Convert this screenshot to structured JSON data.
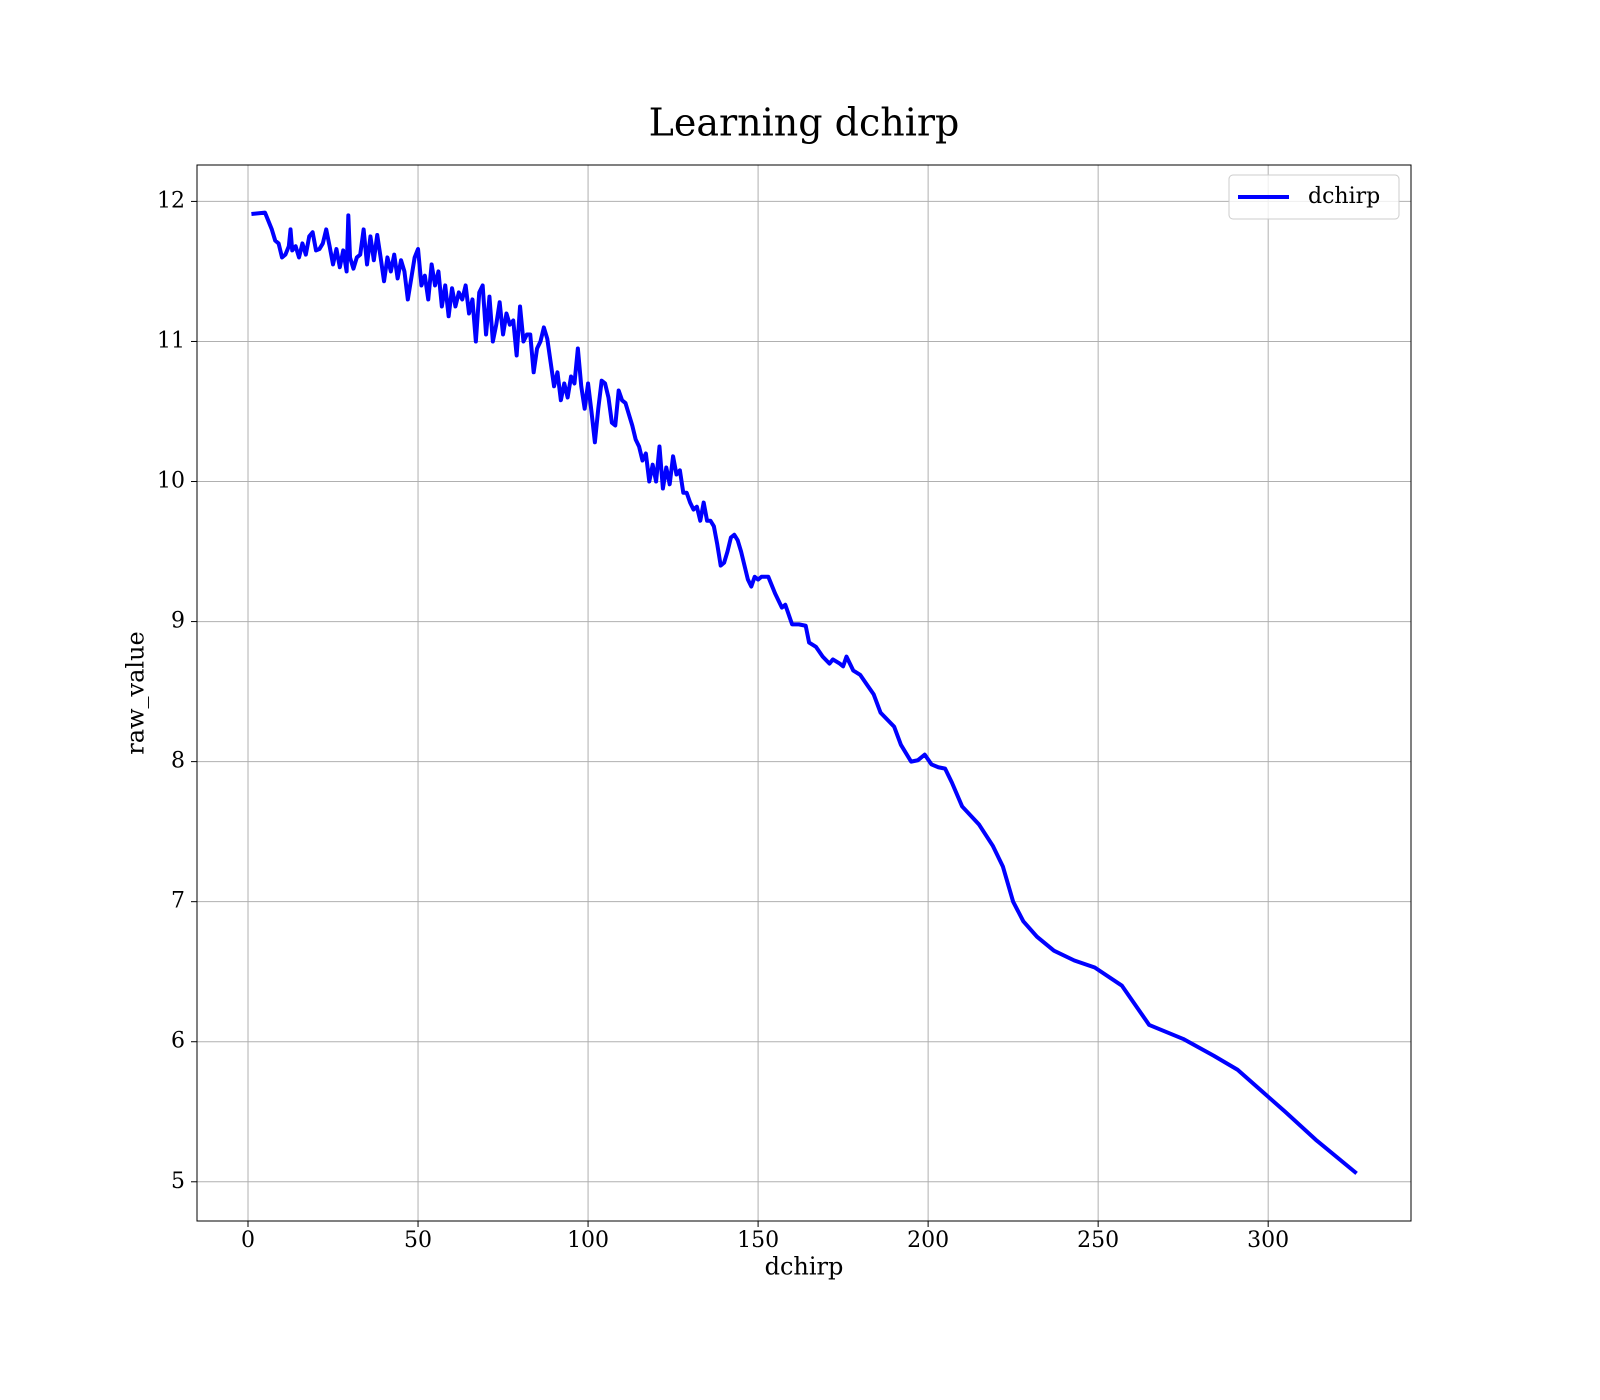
{
  "chart_data": {
    "type": "line",
    "title": "Learning dchirp",
    "xlabel": "dchirp",
    "ylabel": "raw_value",
    "x": [
      1,
      5,
      7,
      8,
      9,
      10,
      11,
      12,
      12.5,
      13,
      14,
      15,
      16,
      17,
      18,
      19,
      20,
      21,
      22,
      23,
      24,
      25,
      26,
      27,
      28,
      29,
      29.5,
      30,
      31,
      32,
      33,
      34,
      35,
      36,
      37,
      38,
      39,
      40,
      41,
      42,
      43,
      44,
      45,
      46,
      47,
      48,
      49,
      50,
      51,
      52,
      53,
      54,
      55,
      56,
      57,
      58,
      59,
      60,
      61,
      62,
      63,
      64,
      65,
      66,
      67,
      68,
      69,
      70,
      71,
      72,
      73,
      74,
      75,
      76,
      77,
      78,
      79,
      80,
      81,
      82,
      83,
      84,
      85,
      86,
      87,
      88,
      89,
      90,
      91,
      92,
      93,
      94,
      95,
      96,
      97,
      98,
      99,
      100,
      101,
      102,
      103,
      104,
      105,
      106,
      107,
      108,
      109,
      110,
      111,
      112,
      113,
      114,
      115,
      116,
      117,
      118,
      119,
      120,
      121,
      122,
      123,
      124,
      125,
      126,
      127,
      128,
      129,
      130,
      131,
      132,
      133,
      134,
      135,
      136,
      137,
      138,
      139,
      140,
      141,
      142,
      143,
      144,
      145,
      146,
      147,
      148,
      149,
      150,
      151,
      153,
      155,
      157,
      158,
      160,
      162,
      164,
      165,
      167,
      169,
      171,
      172,
      174,
      175,
      176,
      178,
      180,
      182,
      184,
      186,
      188,
      190,
      192,
      195,
      197,
      199,
      201,
      203,
      205,
      207,
      210,
      215,
      219,
      222,
      225,
      228,
      232,
      237,
      243,
      249,
      257,
      265,
      275,
      284,
      291,
      298,
      305,
      314,
      326
    ],
    "series": [
      {
        "name": "dchirp",
        "color": "#0000ff",
        "values": [
          11.91,
          11.92,
          11.8,
          11.72,
          11.7,
          11.6,
          11.62,
          11.68,
          11.8,
          11.65,
          11.68,
          11.6,
          11.7,
          11.62,
          11.75,
          11.78,
          11.65,
          11.66,
          11.7,
          11.8,
          11.68,
          11.55,
          11.66,
          11.53,
          11.65,
          11.5,
          11.9,
          11.6,
          11.52,
          11.6,
          11.62,
          11.8,
          11.55,
          11.75,
          11.58,
          11.76,
          11.6,
          11.43,
          11.6,
          11.5,
          11.62,
          11.45,
          11.58,
          11.5,
          11.3,
          11.45,
          11.6,
          11.66,
          11.4,
          11.47,
          11.3,
          11.55,
          11.4,
          11.5,
          11.25,
          11.4,
          11.18,
          11.38,
          11.25,
          11.35,
          11.3,
          11.4,
          11.2,
          11.3,
          11.0,
          11.35,
          11.4,
          11.05,
          11.32,
          11.0,
          11.12,
          11.28,
          11.05,
          11.2,
          11.12,
          11.15,
          10.9,
          11.25,
          11.0,
          11.05,
          11.05,
          10.78,
          10.95,
          11.0,
          11.1,
          11.02,
          10.85,
          10.68,
          10.78,
          10.58,
          10.7,
          10.6,
          10.75,
          10.7,
          10.95,
          10.68,
          10.52,
          10.7,
          10.5,
          10.28,
          10.52,
          10.72,
          10.7,
          10.6,
          10.42,
          10.4,
          10.65,
          10.58,
          10.56,
          10.48,
          10.4,
          10.3,
          10.25,
          10.15,
          10.2,
          10.0,
          10.12,
          10.0,
          10.25,
          9.95,
          10.1,
          9.98,
          10.18,
          10.05,
          10.08,
          9.92,
          9.92,
          9.85,
          9.8,
          9.82,
          9.72,
          9.85,
          9.72,
          9.72,
          9.68,
          9.55,
          9.4,
          9.42,
          9.5,
          9.6,
          9.62,
          9.58,
          9.5,
          9.4,
          9.3,
          9.25,
          9.32,
          9.3,
          9.32,
          9.32,
          9.2,
          9.1,
          9.12,
          8.98,
          8.98,
          8.97,
          8.85,
          8.82,
          8.75,
          8.7,
          8.73,
          8.7,
          8.68,
          8.75,
          8.65,
          8.62,
          8.55,
          8.48,
          8.35,
          8.3,
          8.25,
          8.12,
          8.0,
          8.01,
          8.05,
          7.98,
          7.96,
          7.95,
          7.85,
          7.68,
          7.55,
          7.4,
          7.25,
          7.0,
          6.86,
          6.75,
          6.65,
          6.58,
          6.53,
          6.4,
          6.12,
          6.02,
          5.9,
          5.8,
          5.65,
          5.5,
          5.3,
          5.06
        ]
      }
    ],
    "xlim": [
      -15,
      342
    ],
    "ylim": [
      4.72,
      12.26
    ],
    "xticks": [
      0,
      50,
      100,
      150,
      200,
      250,
      300
    ],
    "yticks": [
      5,
      6,
      7,
      8,
      9,
      10,
      11,
      12
    ],
    "grid": true,
    "legend": "upper right"
  }
}
